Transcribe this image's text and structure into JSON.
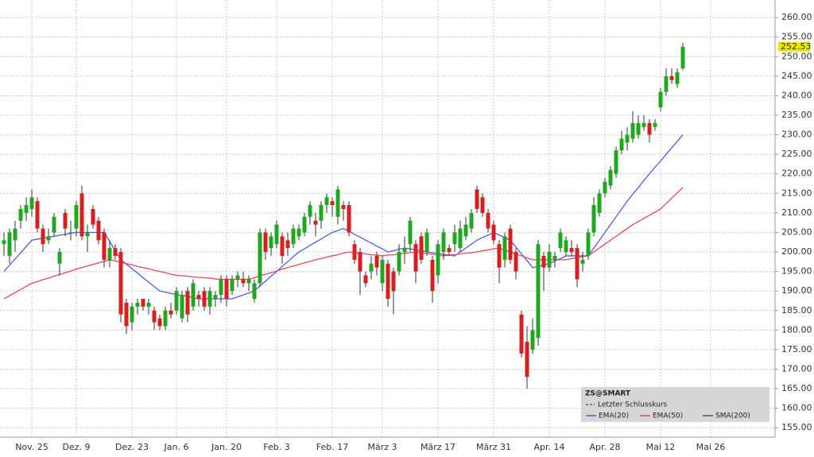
{
  "chart_data": {
    "type": "candlestick",
    "symbol": "ZS@SMART",
    "last_close_label": "Letzter Schlusskurs",
    "last_price": 252.53,
    "sma_label": "SMA(200)",
    "ylim": [
      152.6,
      264.5
    ],
    "yticks": [
      {
        "value": 155,
        "label": "155.00"
      },
      {
        "value": 160,
        "label": "160.00"
      },
      {
        "value": 165,
        "label": "165.00"
      },
      {
        "value": 170,
        "label": "170.00"
      },
      {
        "value": 175,
        "label": "175.00"
      },
      {
        "value": 180,
        "label": "180.00"
      },
      {
        "value": 185,
        "label": "185.00"
      },
      {
        "value": 190,
        "label": "190.00"
      },
      {
        "value": 195,
        "label": "195.00"
      },
      {
        "value": 200,
        "label": "200.00"
      },
      {
        "value": 205,
        "label": "205.00"
      },
      {
        "value": 210,
        "label": "210.00"
      },
      {
        "value": 215,
        "label": "215.00"
      },
      {
        "value": 220,
        "label": "220.00"
      },
      {
        "value": 225,
        "label": "225.00"
      },
      {
        "value": 230,
        "label": "230.00"
      },
      {
        "value": 235,
        "label": "235.00"
      },
      {
        "value": 240,
        "label": "240.00"
      },
      {
        "value": 245,
        "label": "245.00"
      },
      {
        "value": 250,
        "label": "250.00"
      },
      {
        "value": 255,
        "label": "255.00"
      },
      {
        "value": 260,
        "label": "260.00"
      }
    ],
    "grid": true,
    "up_color": "#1fa81f",
    "down_color": "#d81e1e",
    "categories": [
      null,
      null,
      null,
      null,
      null,
      "Nov. 25",
      null,
      null,
      null,
      null,
      null,
      null,
      null,
      "Dez. 9",
      null,
      null,
      null,
      null,
      null,
      null,
      null,
      null,
      null,
      "Dez. 23",
      null,
      null,
      null,
      null,
      null,
      null,
      null,
      "Jan. 6",
      null,
      null,
      null,
      null,
      null,
      null,
      null,
      null,
      "Jan. 20",
      null,
      null,
      null,
      null,
      null,
      null,
      null,
      null,
      "Feb. 3",
      null,
      null,
      null,
      null,
      null,
      null,
      null,
      null,
      null,
      "Feb. 17",
      null,
      null,
      null,
      null,
      null,
      null,
      null,
      null,
      "März 3",
      null,
      null,
      null,
      null,
      null,
      null,
      null,
      null,
      null,
      "März 17",
      null,
      null,
      null,
      null,
      null,
      null,
      null,
      null,
      null,
      "März 31",
      null,
      null,
      null,
      null,
      null,
      null,
      null,
      null,
      null,
      "Apr. 14",
      null,
      null,
      null,
      null,
      null,
      null,
      null,
      null,
      null,
      "Apr. 28",
      null,
      null,
      null,
      null,
      null,
      null,
      null,
      null,
      null,
      "Mai 12",
      null,
      null,
      null,
      null,
      null,
      null,
      null,
      null,
      "Mai 26"
    ],
    "candles": [
      [
        202,
        205,
        199,
        203
      ],
      [
        199,
        206,
        197,
        205
      ],
      [
        203,
        208,
        200,
        206
      ],
      [
        208,
        212,
        206,
        211
      ],
      [
        210,
        214,
        208,
        212
      ],
      [
        211,
        216,
        209,
        214
      ],
      [
        213,
        214,
        205,
        206
      ],
      [
        206,
        207,
        200,
        202
      ],
      [
        203,
        206,
        202,
        204
      ],
      [
        205,
        210,
        204,
        209
      ],
      [
        197,
        201,
        194,
        200
      ],
      [
        210,
        211,
        204,
        206
      ],
      [
        205,
        208,
        203,
        205
      ],
      [
        206,
        213,
        204,
        212
      ],
      [
        215,
        217,
        203,
        204
      ],
      [
        204,
        207,
        200,
        205
      ],
      [
        211,
        212,
        206,
        207
      ],
      [
        208,
        209,
        202,
        203
      ],
      [
        205,
        206,
        196,
        198
      ],
      [
        198,
        203,
        196,
        201
      ],
      [
        201,
        202,
        198,
        199
      ],
      [
        200,
        201,
        182,
        184
      ],
      [
        187,
        188,
        179,
        181
      ],
      [
        182,
        187,
        180,
        186
      ],
      [
        186,
        188,
        184,
        187
      ],
      [
        188,
        188,
        185,
        186
      ],
      [
        186,
        188,
        184,
        187
      ],
      [
        185,
        186,
        180,
        182
      ],
      [
        183,
        184,
        180,
        181
      ],
      [
        181,
        186,
        180,
        185
      ],
      [
        185,
        187,
        183,
        184
      ],
      [
        185,
        191,
        184,
        190
      ],
      [
        183,
        190,
        182,
        189
      ],
      [
        190,
        191,
        182,
        184
      ],
      [
        186,
        193,
        185,
        192
      ],
      [
        189,
        190,
        186,
        188
      ],
      [
        190,
        191,
        185,
        186
      ],
      [
        186,
        191,
        184,
        190
      ],
      [
        188,
        190,
        186,
        189
      ],
      [
        189,
        194,
        187,
        193
      ],
      [
        193,
        194,
        186,
        188
      ],
      [
        190,
        194,
        189,
        193
      ],
      [
        193,
        195,
        191,
        194
      ],
      [
        193,
        195,
        191,
        192
      ],
      [
        192,
        194,
        190,
        193
      ],
      [
        188,
        193,
        187,
        192
      ],
      [
        192,
        206,
        191,
        205
      ],
      [
        205,
        206,
        198,
        200
      ],
      [
        201,
        205,
        199,
        204
      ],
      [
        202,
        208,
        201,
        207
      ],
      [
        204,
        205,
        197,
        199
      ],
      [
        203,
        205,
        199,
        201
      ],
      [
        202,
        207,
        201,
        206
      ],
      [
        204,
        207,
        203,
        206
      ],
      [
        205,
        210,
        204,
        209
      ],
      [
        209,
        213,
        207,
        212
      ],
      [
        208,
        210,
        204,
        207
      ],
      [
        208,
        213,
        206,
        212
      ],
      [
        212,
        215,
        210,
        214
      ],
      [
        213,
        214,
        209,
        212
      ],
      [
        209,
        217,
        207,
        216
      ],
      [
        212,
        213,
        208,
        211
      ],
      [
        212,
        213,
        204,
        205
      ],
      [
        202,
        203,
        197,
        198
      ],
      [
        200,
        201,
        189,
        195
      ],
      [
        194,
        195,
        191,
        192
      ],
      [
        195,
        199,
        193,
        197
      ],
      [
        199,
        200,
        194,
        196
      ],
      [
        192,
        199,
        190,
        198
      ],
      [
        197,
        198,
        186,
        188
      ],
      [
        195,
        196,
        184,
        190
      ],
      [
        195,
        202,
        194,
        200
      ],
      [
        200,
        204,
        197,
        201
      ],
      [
        202,
        209,
        200,
        208
      ],
      [
        202,
        203,
        192,
        195
      ],
      [
        204,
        205,
        197,
        198
      ],
      [
        200,
        206,
        199,
        205
      ],
      [
        198,
        199,
        187,
        190
      ],
      [
        194,
        203,
        192,
        202
      ],
      [
        200,
        206,
        198,
        205
      ],
      [
        201,
        202,
        199,
        200
      ],
      [
        202,
        207,
        200,
        205
      ],
      [
        201,
        208,
        200,
        206
      ],
      [
        204,
        209,
        203,
        207
      ],
      [
        206,
        211,
        205,
        210
      ],
      [
        216,
        217,
        210,
        211
      ],
      [
        214,
        215,
        209,
        210
      ],
      [
        210,
        211,
        205,
        206
      ],
      [
        207,
        208,
        202,
        203
      ],
      [
        202,
        203,
        192,
        196
      ],
      [
        198,
        205,
        196,
        204
      ],
      [
        206,
        207,
        197,
        198
      ],
      [
        200,
        201,
        193,
        195
      ],
      [
        184,
        185,
        173,
        174
      ],
      [
        177,
        181,
        165,
        168
      ],
      [
        175,
        183,
        174,
        180
      ],
      [
        178,
        203,
        176,
        202
      ],
      [
        199,
        200,
        190,
        196
      ],
      [
        196,
        202,
        195,
        200
      ],
      [
        198,
        200,
        196,
        199
      ],
      [
        201,
        206,
        200,
        205
      ],
      [
        200,
        204,
        199,
        203
      ],
      [
        201,
        203,
        199,
        200
      ],
      [
        201,
        202,
        191,
        193
      ],
      [
        197,
        200,
        195,
        198
      ],
      [
        199,
        206,
        198,
        205
      ],
      [
        205,
        214,
        204,
        212
      ],
      [
        210,
        216,
        209,
        215
      ],
      [
        215,
        219,
        214,
        218
      ],
      [
        217,
        222,
        216,
        221
      ],
      [
        220,
        227,
        219,
        226
      ],
      [
        226,
        231,
        225,
        229
      ],
      [
        228,
        232,
        226,
        230
      ],
      [
        229,
        236,
        228,
        233
      ],
      [
        230,
        235,
        229,
        233
      ],
      [
        232,
        235,
        231,
        233
      ],
      [
        233,
        234,
        228,
        230
      ],
      [
        232,
        234,
        231,
        233
      ],
      [
        237,
        242,
        236,
        241
      ],
      [
        241,
        247,
        240,
        245
      ],
      [
        245,
        247,
        243,
        244
      ],
      [
        243,
        247,
        242,
        246
      ],
      [
        247,
        253.5,
        246.5,
        252.53
      ],
      null,
      null,
      null,
      null,
      null
    ],
    "series": [
      {
        "name": "EMA(20)",
        "color": "#4a5ee8",
        "values": [
          195,
          196.6,
          198.2,
          199.8,
          201.4,
          203,
          203.3,
          203.5,
          203.8,
          204,
          204.3,
          204.5,
          204.8,
          205,
          205,
          205,
          205,
          205,
          205,
          202.7,
          200.3,
          198,
          196.9,
          195.7,
          194.6,
          193.4,
          192.3,
          191.1,
          190,
          189.7,
          189.4,
          189.1,
          188.9,
          188.6,
          188.3,
          188,
          188,
          188,
          188,
          188,
          188,
          188,
          188.5,
          189,
          189.5,
          190,
          191.3,
          192.5,
          193.8,
          195,
          196.3,
          197.5,
          198.8,
          200,
          200.8,
          201.7,
          202.5,
          203.3,
          204.2,
          205,
          205.5,
          206,
          205.3,
          204.5,
          203.8,
          203,
          202.3,
          201.5,
          200.8,
          200,
          200.3,
          200.7,
          201,
          200.8,
          200.5,
          200.3,
          200,
          199.8,
          199.6,
          199.4,
          199.2,
          199,
          200,
          201,
          202,
          203,
          203.7,
          204.3,
          205,
          204.3,
          203.7,
          203,
          201.3,
          199.5,
          197.8,
          196,
          196.3,
          196.7,
          197,
          197.7,
          198.3,
          199,
          199,
          199,
          199,
          199,
          201,
          203,
          205,
          207,
          209,
          211,
          213,
          214.8,
          216.5,
          218.3,
          220,
          221.7,
          223.3,
          225,
          226.7,
          228.3,
          230,
          null,
          null,
          null,
          null,
          null
        ]
      },
      {
        "name": "EMA(50)",
        "color": "#e8465a",
        "values": [
          188,
          188.8,
          189.6,
          190.4,
          191.2,
          192,
          192.4,
          192.9,
          193.3,
          193.8,
          194.2,
          194.7,
          195.1,
          195.6,
          196,
          196.4,
          196.8,
          197.2,
          197.6,
          198,
          197.7,
          197.3,
          197,
          196.7,
          196.3,
          196,
          195.7,
          195.3,
          195,
          194.7,
          194.3,
          194,
          193.9,
          193.8,
          193.6,
          193.5,
          193.4,
          193.3,
          193.1,
          193,
          193,
          193,
          193,
          193,
          193,
          193.4,
          193.9,
          194.3,
          194.7,
          195.1,
          195.6,
          196,
          196.4,
          196.8,
          197.2,
          197.6,
          198,
          198.3,
          198.7,
          199,
          199.3,
          199.7,
          200,
          199.8,
          199.7,
          199.5,
          199.3,
          199.2,
          199,
          199.2,
          199.3,
          199.5,
          199.7,
          199.8,
          200,
          199.8,
          199.6,
          199.4,
          199.2,
          199,
          199.2,
          199.3,
          199.5,
          199.7,
          199.8,
          200,
          200.3,
          200.5,
          200.8,
          201,
          200.5,
          200,
          199.5,
          199,
          198.5,
          198,
          198,
          198,
          198,
          198,
          198,
          198,
          198.3,
          198.5,
          198.8,
          199,
          200,
          201,
          202,
          203,
          204,
          205,
          206,
          207,
          207.8,
          208.6,
          209.4,
          210.2,
          211,
          212.4,
          213.8,
          215.1,
          216.5,
          null,
          null,
          null,
          null,
          null
        ]
      }
    ]
  }
}
